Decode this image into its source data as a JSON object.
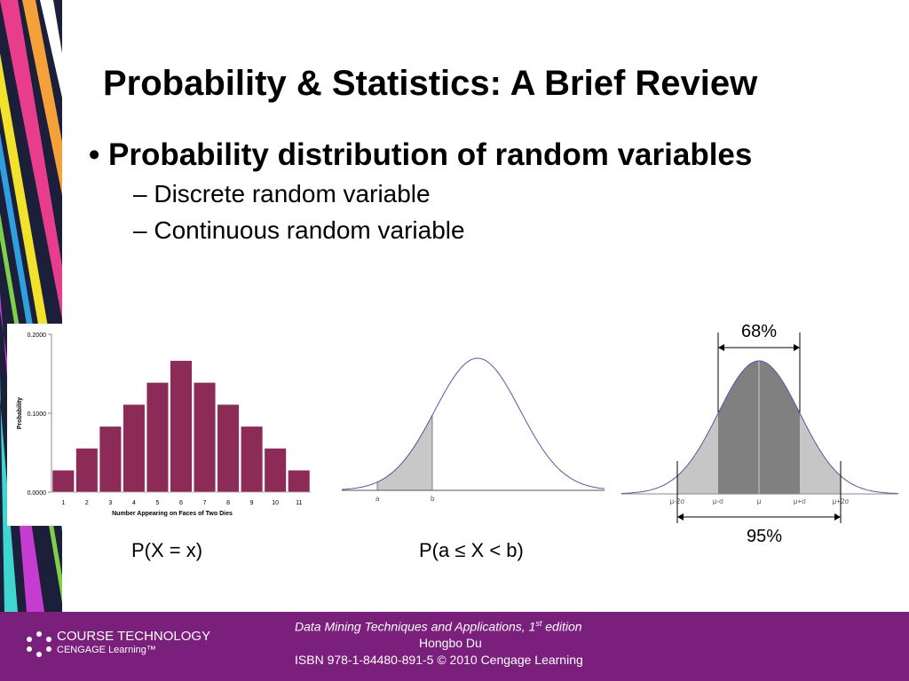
{
  "title": "Probability & Statistics: A Brief Review",
  "bullets": [
    {
      "text": "Probability distribution of random variables",
      "subitems": [
        "Discrete random variable",
        "Continuous random variable"
      ]
    }
  ],
  "histogram": {
    "type": "bar",
    "y_label": "Probability",
    "x_label": "Number Appearing on Faces of Two Dies",
    "categories": [
      "1",
      "2",
      "3",
      "4",
      "5",
      "6",
      "7",
      "8",
      "9",
      "10",
      "11"
    ],
    "values": [
      0.0278,
      0.0556,
      0.0833,
      0.1111,
      0.1389,
      0.1667,
      0.1389,
      0.1111,
      0.0833,
      0.0556,
      0.0278
    ],
    "color": "#8c2a58",
    "ylim": [
      0,
      0.2
    ],
    "yticks": [
      {
        "value": 0,
        "label": "0.0000"
      },
      {
        "value": 0.1,
        "label": "0.1000"
      },
      {
        "value": 0.2,
        "label": "0.2000"
      }
    ]
  },
  "captions": [
    "P(X = x)",
    "P(a ≤ X < b)"
  ],
  "interval_labels": [
    "a",
    "b"
  ],
  "normal_labels": [
    "μ-2σ",
    "μ-σ",
    "μ",
    "μ+σ",
    "μ+2σ"
  ],
  "percent_labels": [
    "68%",
    "95%"
  ],
  "footer": {
    "logo": [
      "COURSE TECHNOLOGY",
      "CENGAGE Learning™"
    ],
    "book": [
      "Data Mining Techniques and Applications, 1",
      "st",
      "edition"
    ],
    "author": "Hongbo Du",
    "isbn": "ISBN 978-1-84480-891-5 © 2010 Cengage Learning"
  }
}
